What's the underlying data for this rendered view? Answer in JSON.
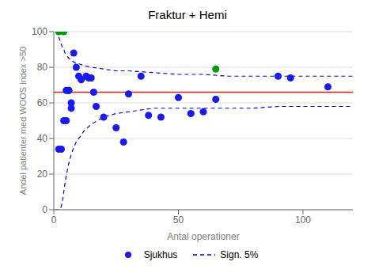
{
  "chart_data": {
    "type": "scatter",
    "title": "Fraktur + Hemi",
    "xlabel": "Antal operationer",
    "ylabel": "Andel patienter med WOOS index >50",
    "xlim": [
      0,
      120
    ],
    "ylim": [
      0,
      100
    ],
    "xticks": [
      0,
      50,
      100
    ],
    "yticks": [
      0,
      20,
      40,
      60,
      80,
      100
    ],
    "grid": "y",
    "legend": "bottom",
    "mean_line": {
      "value": 66,
      "color": "#cc2222"
    },
    "series": [
      {
        "name": "Sign. 5%",
        "type": "line",
        "line_style": "dashed",
        "color": "#0000cc",
        "x": [
          0.5,
          1,
          1.5,
          2,
          2.5,
          3,
          3.5,
          4,
          4.5,
          5,
          6,
          7,
          8,
          9,
          10,
          12,
          15,
          20,
          25,
          30,
          40,
          50,
          60,
          70,
          80,
          90,
          100,
          110,
          120
        ],
        "values": [
          100,
          100,
          99,
          97,
          95,
          93,
          91,
          90,
          88,
          87,
          85,
          84,
          83,
          82,
          82,
          81,
          80,
          79,
          78,
          78,
          77,
          76,
          76,
          75,
          75,
          75,
          75,
          75,
          75
        ]
      },
      {
        "name": "Sign. 5%",
        "type": "line",
        "line_style": "dashed",
        "color": "#0000cc",
        "x": [
          0.5,
          1,
          1.5,
          2,
          2.5,
          3,
          3.5,
          4,
          4.5,
          5,
          6,
          7,
          8,
          9,
          10,
          12,
          15,
          20,
          25,
          30,
          40,
          50,
          60,
          70,
          80,
          90,
          100,
          110,
          120
        ],
        "values": [
          0,
          0,
          0,
          0,
          0,
          2,
          5,
          10,
          15,
          19,
          26,
          31,
          35,
          38,
          40,
          44,
          48,
          52,
          54,
          55,
          57,
          57,
          57,
          57,
          57,
          58,
          58,
          58,
          58
        ]
      },
      {
        "name": "Sjukhus",
        "type": "scatter",
        "marker": "circle",
        "color": "#1a1aee",
        "x": [
          2,
          3,
          4,
          5,
          5,
          6,
          6,
          7,
          7,
          8,
          9,
          10,
          11,
          13,
          14,
          15,
          16,
          17,
          20,
          25,
          28,
          30,
          35,
          38,
          43,
          50,
          55,
          60,
          65,
          90,
          95,
          110
        ],
        "values": [
          34,
          34,
          50,
          50,
          67,
          67,
          67,
          60,
          57,
          88,
          80,
          75,
          73,
          75,
          74,
          74,
          66,
          58,
          52,
          46,
          38,
          65,
          75,
          53,
          52,
          63,
          54,
          55,
          62,
          75,
          74,
          69
        ]
      },
      {
        "type": "scatter",
        "marker": "circle",
        "color": "#009900",
        "x": [
          2,
          4,
          65
        ],
        "values": [
          100,
          100,
          79
        ]
      }
    ]
  }
}
